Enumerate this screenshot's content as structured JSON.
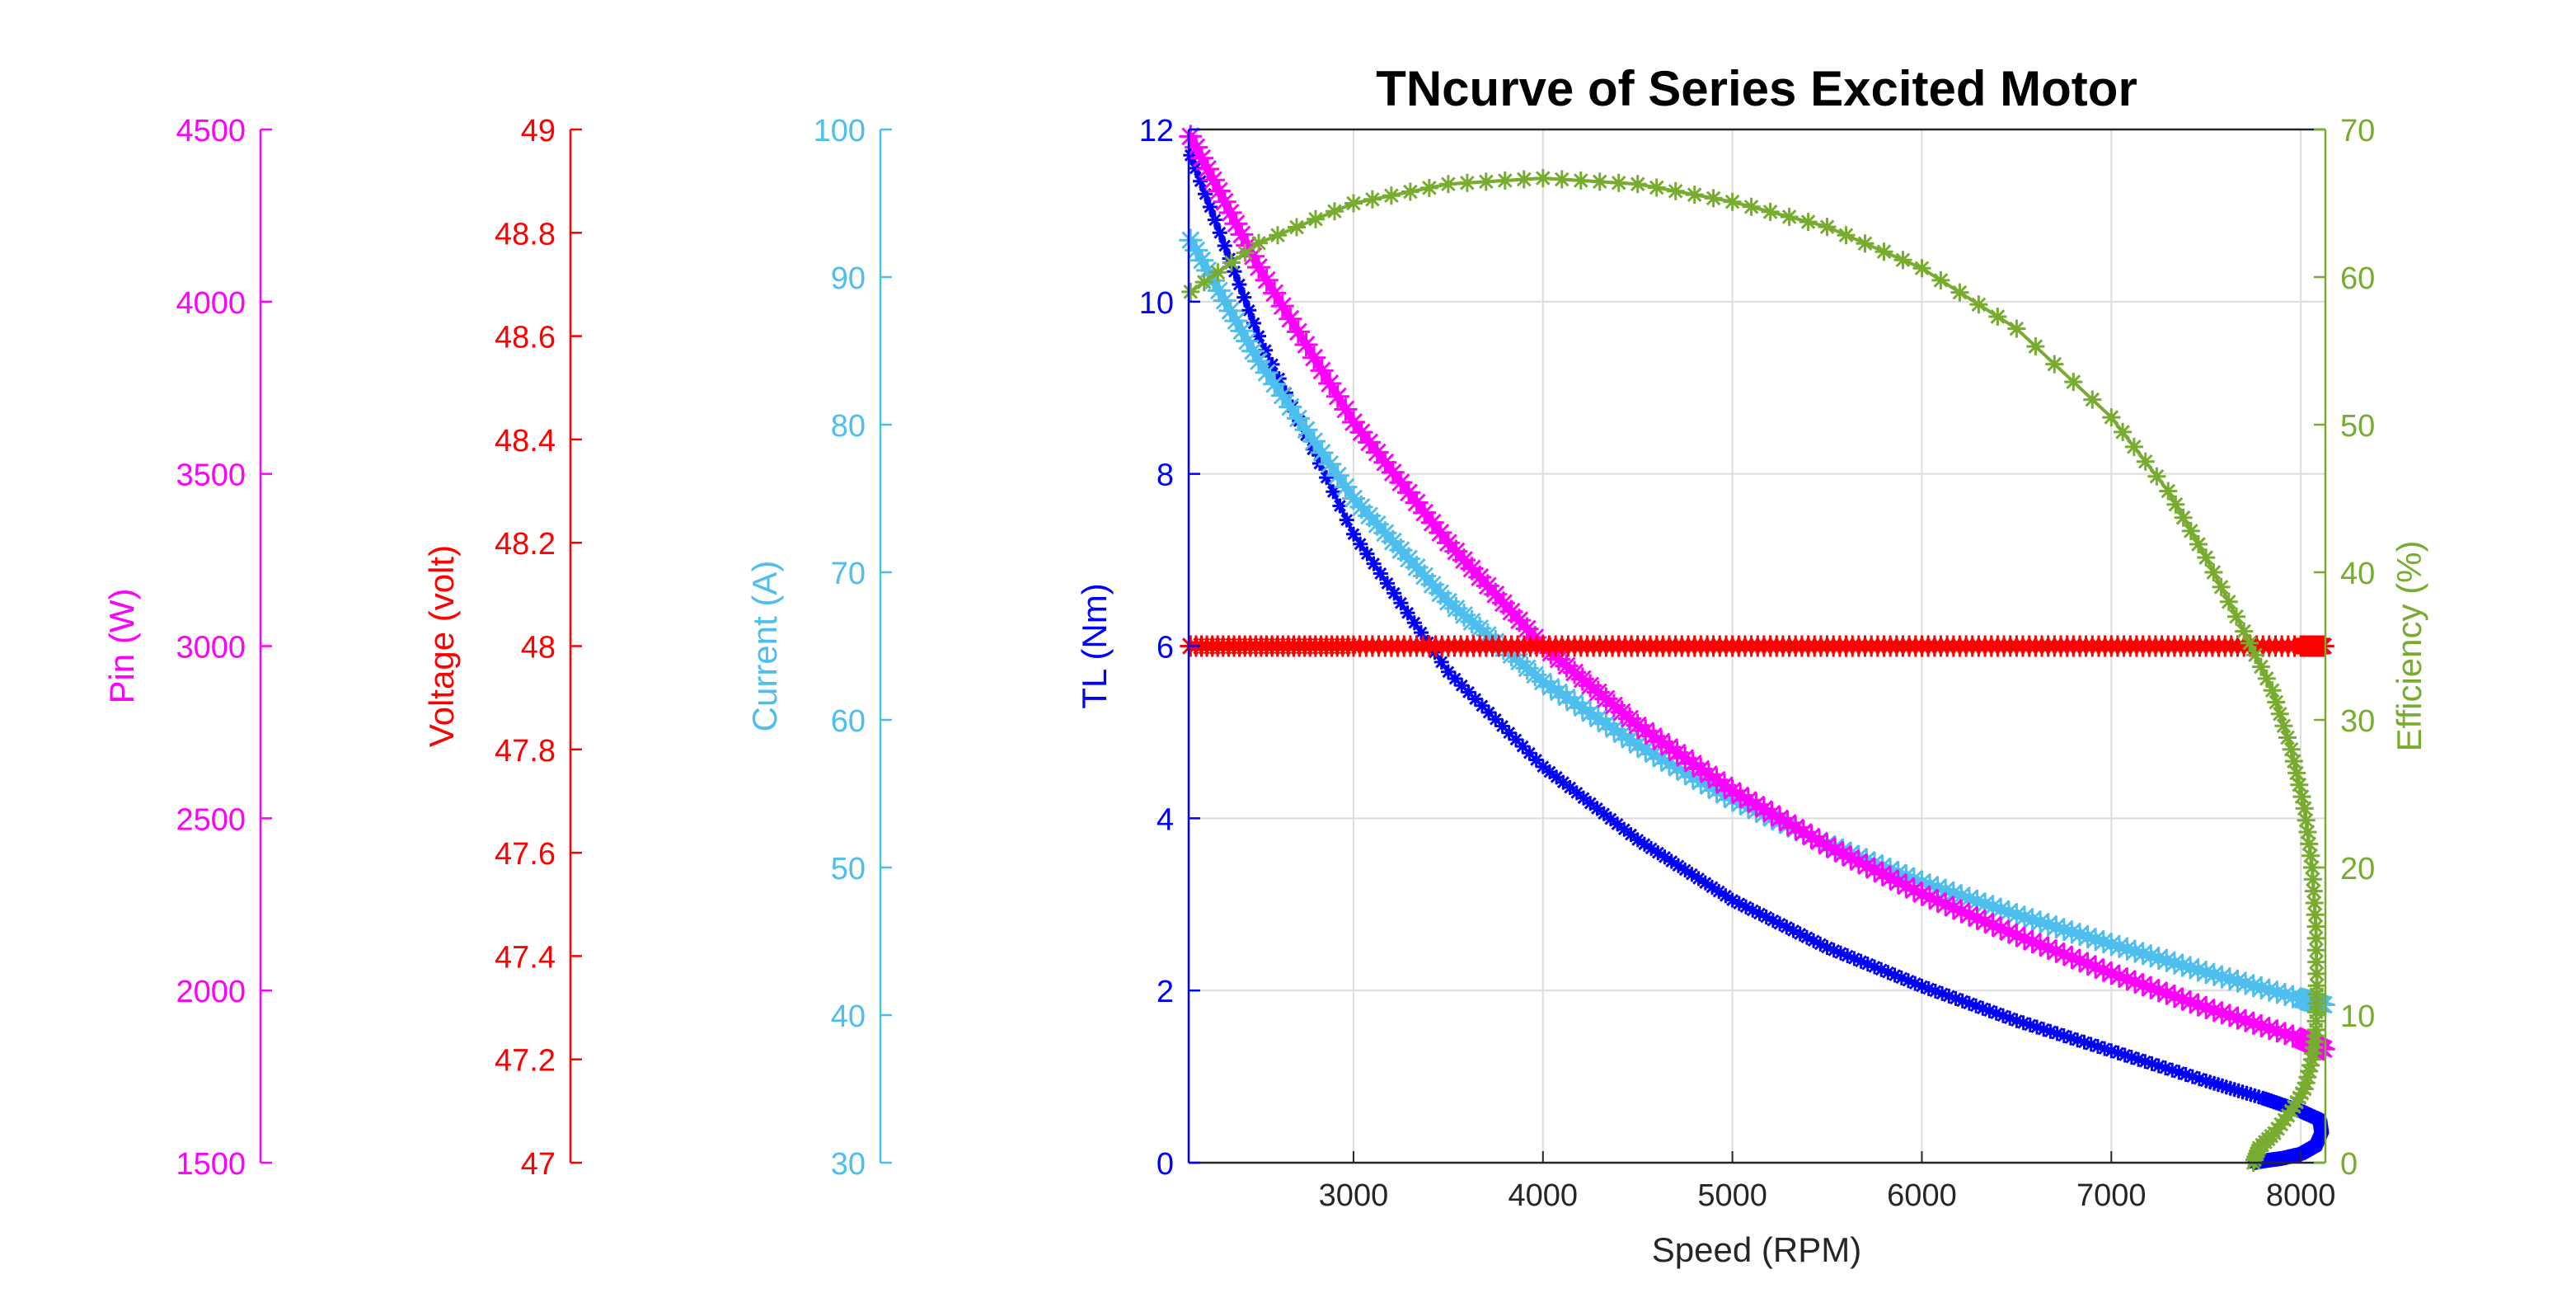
{
  "chart_data": {
    "type": "line",
    "title": "TNcurve of Series Excited Motor",
    "xlabel": "Speed (RPM)",
    "xlim": [
      2130,
      8130
    ],
    "xticks": [
      3000,
      4000,
      5000,
      6000,
      7000,
      8000
    ],
    "grid": true,
    "axes": [
      {
        "id": "tl",
        "label": "TL (Nm)",
        "color": "#0000FF",
        "lim": [
          0,
          12
        ],
        "ticks": [
          "0",
          "2",
          "4",
          "6",
          "8",
          "10",
          "12"
        ]
      },
      {
        "id": "eff",
        "label": "Efficiency (%)",
        "color": "#77AC30",
        "lim": [
          0,
          70
        ],
        "ticks": [
          "0",
          "10",
          "20",
          "30",
          "40",
          "50",
          "60",
          "70"
        ]
      },
      {
        "id": "cur",
        "label": "Current (A)",
        "color": "#4DBEEE",
        "lim": [
          30,
          100
        ],
        "ticks": [
          "30",
          "40",
          "50",
          "60",
          "70",
          "80",
          "90",
          "100"
        ]
      },
      {
        "id": "volt",
        "label": "Voltage (volt)",
        "color": "#FF0000",
        "lim": [
          47,
          49
        ],
        "ticks": [
          "47",
          "47.2",
          "47.4",
          "47.6",
          "47.8",
          "48",
          "48.2",
          "48.4",
          "48.6",
          "48.8",
          "49"
        ]
      },
      {
        "id": "pin",
        "label": "Pin (W)",
        "color": "#FF00FF",
        "lim": [
          1500,
          4500
        ],
        "ticks": [
          "1500",
          "2000",
          "2500",
          "3000",
          "3500",
          "4000",
          "4500"
        ]
      }
    ],
    "series": [
      {
        "axis": "tl",
        "color": "#0000FF",
        "x": [
          2140,
          2500,
          3000,
          3500,
          4000,
          4500,
          5000,
          5500,
          6000,
          6500,
          7000,
          7500,
          7800,
          8000,
          8100,
          8110,
          8080,
          8000,
          7900,
          7800,
          7750
        ],
        "y": [
          11.7,
          9.6,
          7.3,
          5.7,
          4.6,
          3.75,
          3.05,
          2.5,
          2.05,
          1.65,
          1.3,
          0.95,
          0.75,
          0.6,
          0.5,
          0.35,
          0.2,
          0.1,
          0.05,
          0.02,
          0.0
        ]
      },
      {
        "axis": "cur",
        "color": "#4DBEEE",
        "x": [
          2140,
          2500,
          3000,
          3500,
          4000,
          4500,
          5000,
          5500,
          6000,
          6500,
          7000,
          7500,
          8000,
          8120
        ],
        "y": [
          92.5,
          84.3,
          75.0,
          68.0,
          62.6,
          58.3,
          54.6,
          51.6,
          49.0,
          46.8,
          44.8,
          42.9,
          41.1,
          40.7
        ]
      },
      {
        "axis": "pin",
        "color": "#FF00FF",
        "x": [
          2140,
          2500,
          3000,
          3500,
          4000,
          4500,
          5000,
          5500,
          6000,
          6500,
          7000,
          7500,
          8000,
          8120
        ],
        "y": [
          4480,
          4100,
          3650,
          3300,
          3000,
          2770,
          2580,
          2420,
          2280,
          2160,
          2050,
          1950,
          1860,
          1830
        ]
      },
      {
        "axis": "volt",
        "color": "#FF0000",
        "x": [
          2140,
          3000,
          4000,
          5000,
          6000,
          7000,
          8000,
          8120
        ],
        "y": [
          48,
          48,
          48,
          48,
          48,
          48,
          48,
          48
        ]
      },
      {
        "axis": "eff",
        "color": "#77AC30",
        "x": [
          2140,
          2500,
          3000,
          3500,
          4000,
          4500,
          5000,
          5500,
          6000,
          6500,
          7000,
          7300,
          7500,
          7700,
          7850,
          7950,
          8020,
          8060,
          8080,
          8085,
          8080,
          8060,
          8020,
          7950,
          7860,
          7780,
          7750
        ],
        "y": [
          59.0,
          62.3,
          65.0,
          66.3,
          66.7,
          66.3,
          65.1,
          63.4,
          60.6,
          56.5,
          50.5,
          45.5,
          41.0,
          36.0,
          32.0,
          28.0,
          24.0,
          20.0,
          16.0,
          12.0,
          9.0,
          7.0,
          5.0,
          3.5,
          2.0,
          1.0,
          0.0
        ]
      }
    ]
  }
}
